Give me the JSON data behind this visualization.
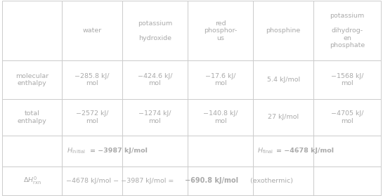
{
  "col_headers": [
    "",
    "water",
    "potassium\n\nhydroxide",
    "red\nphosphor-\nus",
    "phosphine",
    "potassium\n\ndihydrog-\nen\nphosphate"
  ],
  "mol_enthalpy_label": "molecular\nenthalpy",
  "tot_enthalpy_label": "total\nenthalpy",
  "mol_enthalpy": [
    "−285.8 kJ/\nmol",
    "−424.6 kJ/\nmol",
    "−17.6 kJ/\nmol",
    "5.4 kJ/mol",
    "−1568 kJ/\nmol"
  ],
  "tot_enthalpy": [
    "−2572 kJ/\nmol",
    "−1274 kJ/\nmol",
    "−140.8 kJ/\nmol",
    "27 kJ/mol",
    "−4705 kJ/\nmol"
  ],
  "text_color": "#aaaaaa",
  "border_color": "#cccccc",
  "bg_color": "#ffffff",
  "fontsize": 6.8,
  "col_props": [
    0.142,
    0.142,
    0.155,
    0.155,
    0.142,
    0.16
  ],
  "row_props": [
    0.3,
    0.195,
    0.185,
    0.155,
    0.145
  ]
}
